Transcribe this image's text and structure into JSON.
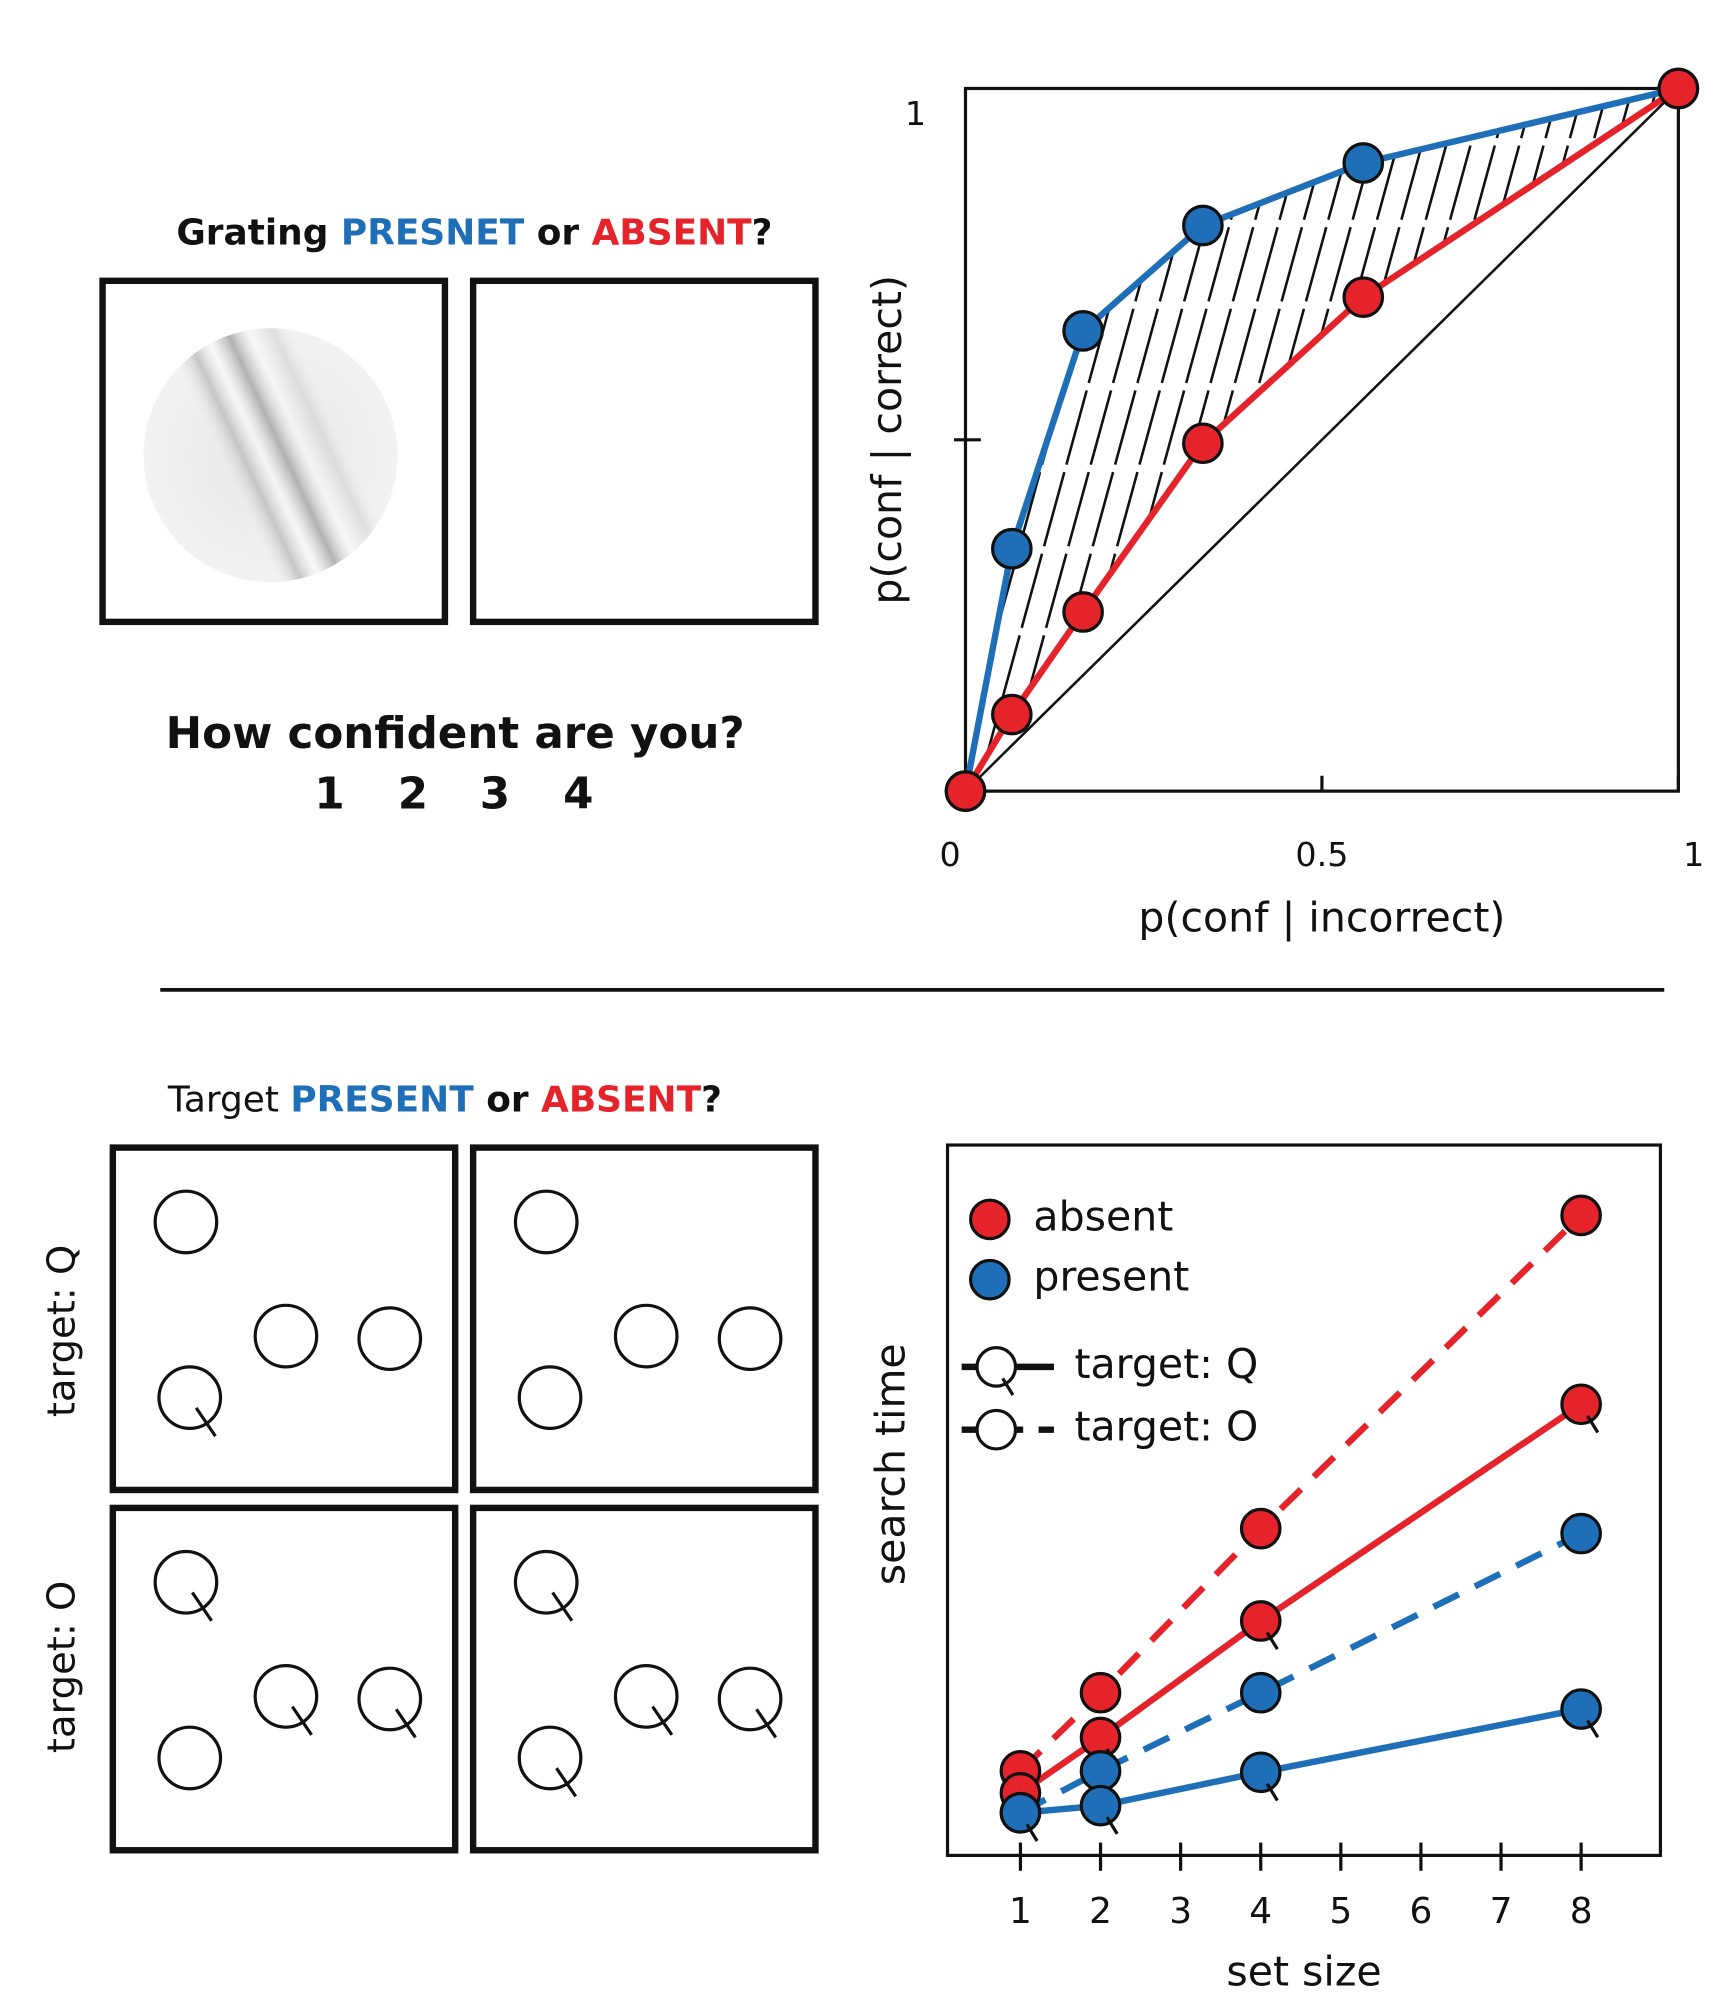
{
  "stimulus_top": {
    "title": [
      "Grating ",
      "PRESNET",
      " or ",
      "ABSENT",
      "?"
    ],
    "question": "How confident are you?",
    "ratings": [
      "1",
      "2",
      "3",
      "4"
    ]
  },
  "stimulus_bottom": {
    "title": [
      "Target ",
      "PRESENT",
      " or ",
      "ABSENT",
      "?"
    ],
    "row_labels": [
      "target: Q",
      "target: O"
    ]
  },
  "chart_data": [
    {
      "type": "line",
      "xlabel": "p(conf | incorrect)",
      "ylabel": "p(conf | correct)",
      "xlim": [
        0,
        1
      ],
      "ylim": [
        0,
        1
      ],
      "xticks": [
        0,
        0.5,
        1
      ],
      "yticks": [
        1
      ],
      "yticks_unlabeled": [
        0.5
      ],
      "series": [
        {
          "color": "#1f6fb8",
          "x": [
            0,
            0.065,
            0.165,
            0.333,
            0.558,
            1
          ],
          "values": [
            0,
            0.345,
            0.655,
            0.805,
            0.894,
            1
          ]
        },
        {
          "color": "#e4232b",
          "x": [
            0,
            0.065,
            0.165,
            0.333,
            0.558,
            1
          ],
          "values": [
            0,
            0.109,
            0.255,
            0.495,
            0.703,
            1
          ]
        }
      ]
    },
    {
      "type": "line",
      "xlabel": "set size",
      "ylabel": "search time",
      "x": [
        1,
        2,
        4,
        8
      ],
      "xlim": [
        0.09,
        8.99
      ],
      "ylim": [
        0,
        1
      ],
      "xticks": [
        1,
        2,
        3,
        4,
        5,
        6,
        7,
        8
      ],
      "legend_colors": [
        {
          "label": "absent",
          "color": "#e4232b"
        },
        {
          "label": "present",
          "color": "#1f6fb8"
        }
      ],
      "legend_styles": [
        {
          "label": "target: Q",
          "dashed": false
        },
        {
          "label": "target: O",
          "dashed": true
        }
      ],
      "series": [
        {
          "color": "#e4232b",
          "dashed": true,
          "values": [
            0.119,
            0.229,
            0.46,
            0.901
          ]
        },
        {
          "color": "#e4232b",
          "dashed": false,
          "values": [
            0.088,
            0.166,
            0.33,
            0.635
          ]
        },
        {
          "color": "#1f6fb8",
          "dashed": true,
          "values": [
            0.06,
            0.119,
            0.229,
            0.453
          ]
        },
        {
          "color": "#1f6fb8",
          "dashed": false,
          "values": [
            0.06,
            0.07,
            0.117,
            0.206
          ]
        }
      ]
    }
  ]
}
